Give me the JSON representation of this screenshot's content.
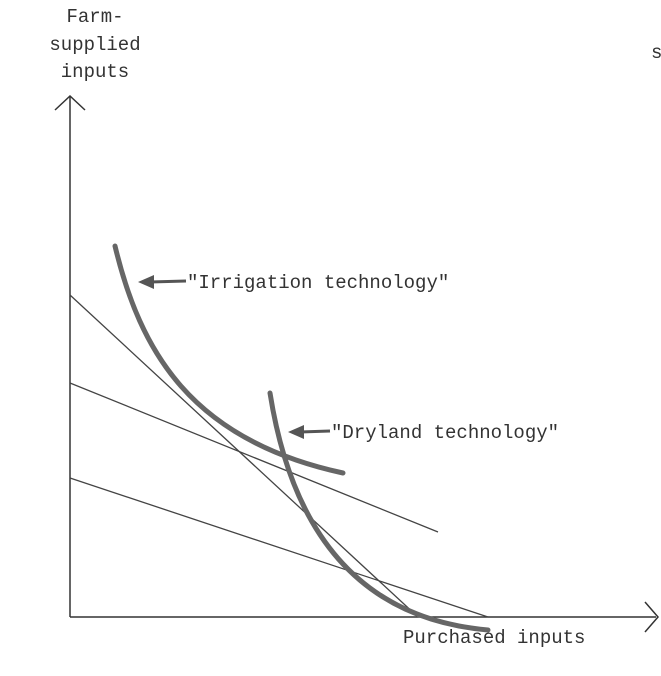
{
  "y_axis_label": [
    "Farm-",
    "supplied",
    "inputs"
  ],
  "x_axis_label": "Purchased inputs",
  "edge_text": "s",
  "curves": [
    {
      "label": "\"Irrigation technology\""
    },
    {
      "label": "\"Dryland technology\""
    }
  ]
}
